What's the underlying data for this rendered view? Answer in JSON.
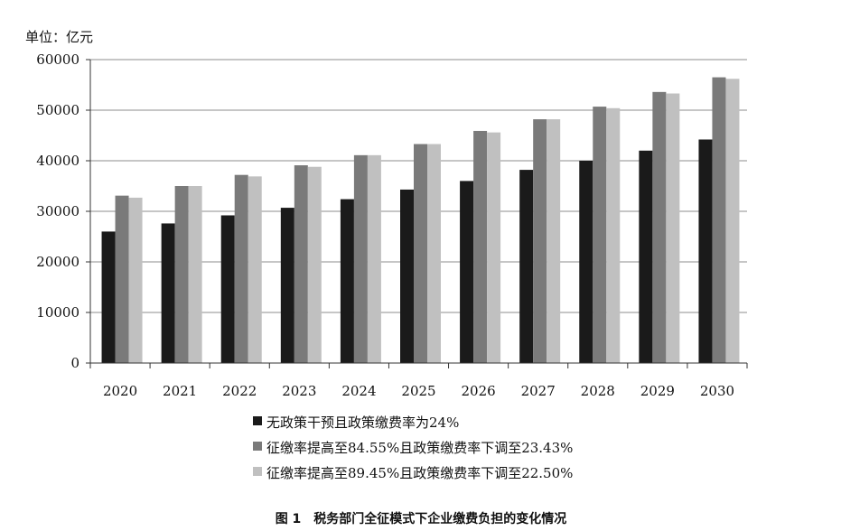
{
  "chart_data": {
    "type": "bar",
    "unit_label": "单位：亿元",
    "caption": "图 1　税务部门全征模式下企业缴费负担的变化情况",
    "categories": [
      "2020",
      "2021",
      "2022",
      "2023",
      "2024",
      "2025",
      "2026",
      "2027",
      "2028",
      "2029",
      "2030"
    ],
    "ylim": [
      0,
      60000
    ],
    "yticks": [
      "0",
      "10000",
      "20000",
      "30000",
      "40000",
      "50000",
      "60000"
    ],
    "grid": true,
    "legend_position": "bottom",
    "series": [
      {
        "name": "无政策干预且政策缴费率为24%",
        "color": "#1a1a1a",
        "values": [
          26000,
          27600,
          29200,
          30700,
          32400,
          34300,
          36000,
          38200,
          40000,
          42000,
          44200
        ]
      },
      {
        "name": "征缴率提高至84.55%且政策缴费率下调至23.43%",
        "color": "#7a7a7a",
        "values": [
          33100,
          35000,
          37200,
          39100,
          41100,
          43300,
          45900,
          48200,
          50700,
          53600,
          56500
        ]
      },
      {
        "name": "征缴率提高至89.45%且政策缴费率下调至22.50%",
        "color": "#c0c0c0",
        "values": [
          32700,
          35000,
          36900,
          38800,
          41100,
          43300,
          45600,
          48200,
          50400,
          53300,
          56200
        ]
      }
    ]
  }
}
